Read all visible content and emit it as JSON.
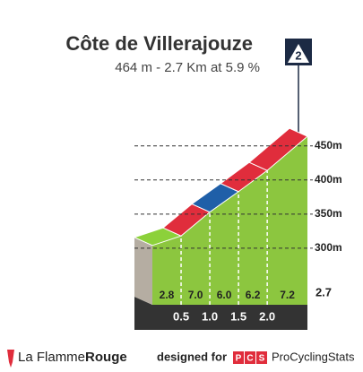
{
  "chart_data": {
    "type": "climb-profile",
    "title": "Côte de Villerajouze",
    "subtitle": "464 m - 2.7 Km at 5.9 %",
    "category": "2",
    "x": [
      0,
      0.5,
      1.0,
      1.5,
      2.0,
      2.7
    ],
    "values": [
      304,
      318,
      353,
      383,
      414,
      464
    ],
    "gradients": {
      "values": [
        2.8,
        7.0,
        6.0,
        6.2,
        7.2
      ],
      "value_labels": [
        "2.8",
        "7.0",
        "6.0",
        "6.2",
        "7.2"
      ],
      "colors": [
        "#8cd13a",
        "#e02d3c",
        "#1f5fa8",
        "#e02d3c",
        "#e02d3c"
      ]
    },
    "xlim": [
      0,
      2.7
    ],
    "xticks": [
      0.5,
      {
        "value": 1.0,
        "label": "1.0"
      },
      1.5,
      {
        "value": 2.0,
        "label": "2.0"
      },
      2.7
    ],
    "ylim": [
      217,
      476
    ],
    "yticks": [
      {
        "value": 300,
        "label": "300m"
      },
      {
        "value": 350,
        "label": "350m"
      },
      {
        "value": 400,
        "label": "400m"
      },
      {
        "value": 450,
        "label": "450m"
      }
    ],
    "color": "#8cc63f"
  },
  "footer": {
    "brand": "La Flamme",
    "brand_accent": "Rouge",
    "designed": "designed for",
    "pcs_logo": [
      "P",
      "C",
      "S"
    ],
    "site": "ProCyclingStats"
  }
}
